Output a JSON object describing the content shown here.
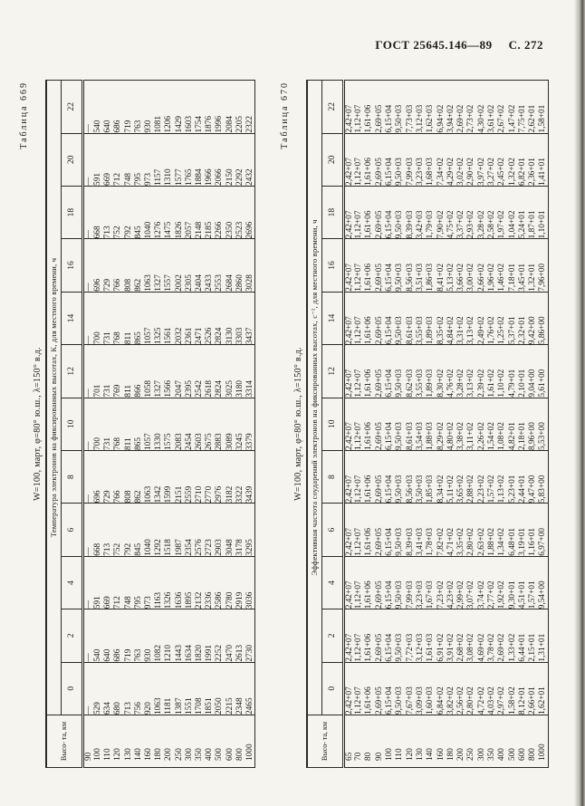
{
  "page": {
    "gost": "ГОСТ 25645.146—89",
    "page_num": "С. 272"
  },
  "tables": [
    {
      "caption": "Таблица 669",
      "title": "W=100, март, φ=80° ю.ш., λ=150° в.д.",
      "height_header": "Высо-\nта, км",
      "span_header": "Температура электронов на фиксированных высотах, К, для местного времени, ч",
      "hours": [
        "0",
        "2",
        "4",
        "6",
        "8",
        "10",
        "12",
        "14",
        "16",
        "18",
        "20",
        "22"
      ],
      "rows": [
        {
          "height": "90",
          "values": [
            "—",
            "—",
            "—",
            "—",
            "—",
            "—",
            "—",
            "—",
            "—",
            "—",
            "—",
            "—"
          ]
        },
        {
          "height": "100",
          "values": [
            "529",
            "540",
            "591",
            "668",
            "696",
            "700",
            "701",
            "700",
            "696",
            "668",
            "591",
            "540"
          ]
        },
        {
          "height": "110",
          "values": [
            "634",
            "640",
            "669",
            "713",
            "729",
            "731",
            "731",
            "731",
            "729",
            "713",
            "669",
            "640"
          ]
        },
        {
          "height": "120",
          "values": [
            "680",
            "686",
            "712",
            "752",
            "766",
            "768",
            "769",
            "768",
            "766",
            "752",
            "712",
            "686"
          ]
        },
        {
          "height": "130",
          "values": [
            "713",
            "719",
            "748",
            "792",
            "808",
            "811",
            "811",
            "811",
            "808",
            "792",
            "748",
            "719"
          ]
        },
        {
          "height": "140",
          "values": [
            "756",
            "763",
            "795",
            "845",
            "862",
            "865",
            "866",
            "865",
            "862",
            "845",
            "795",
            "763"
          ]
        },
        {
          "height": "160",
          "values": [
            "920",
            "930",
            "973",
            "1040",
            "1063",
            "1057",
            "1058",
            "1057",
            "1063",
            "1040",
            "973",
            "930"
          ]
        },
        {
          "height": "180",
          "values": [
            "1063",
            "1082",
            "1163",
            "1292",
            "1342",
            "1330",
            "1327",
            "1325",
            "1327",
            "1276",
            "1157",
            "1081"
          ]
        },
        {
          "height": "200",
          "values": [
            "1181",
            "1210",
            "1326",
            "1518",
            "1599",
            "1575",
            "1566",
            "1561",
            "1557",
            "1475",
            "1310",
            "1206"
          ]
        },
        {
          "height": "250",
          "values": [
            "1387",
            "1443",
            "1636",
            "1987",
            "2151",
            "2083",
            "2047",
            "2032",
            "2002",
            "1826",
            "1577",
            "1429"
          ]
        },
        {
          "height": "300",
          "values": [
            "1551",
            "1634",
            "1895",
            "2354",
            "2559",
            "2454",
            "2395",
            "2361",
            "2305",
            "2057",
            "1765",
            "1603"
          ]
        },
        {
          "height": "350",
          "values": [
            "1708",
            "1820",
            "2132",
            "2576",
            "2710",
            "2603",
            "2542",
            "2471",
            "2404",
            "2148",
            "1884",
            "1754"
          ]
        },
        {
          "height": "400",
          "values": [
            "1851",
            "1991",
            "2336",
            "2723",
            "2770",
            "2675",
            "2618",
            "2526",
            "2433",
            "2185",
            "1966",
            "1876"
          ]
        },
        {
          "height": "500",
          "values": [
            "2050",
            "2252",
            "2586",
            "2903",
            "2976",
            "2883",
            "2824",
            "2824",
            "2553",
            "2266",
            "2066",
            "1996"
          ]
        },
        {
          "height": "600",
          "values": [
            "2215",
            "2470",
            "2780",
            "3048",
            "3182",
            "3089",
            "3025",
            "3130",
            "2684",
            "2350",
            "2150",
            "2084"
          ]
        },
        {
          "height": "800",
          "values": [
            "2348",
            "2613",
            "2919",
            "3178",
            "3322",
            "3245",
            "3180",
            "3303",
            "2860",
            "2523",
            "2292",
            "2205"
          ]
        },
        {
          "height": "1000",
          "values": [
            "2465",
            "2730",
            "3036",
            "3295",
            "3439",
            "3379",
            "3314",
            "3437",
            "3028",
            "2696",
            "2432",
            "2322"
          ]
        }
      ]
    },
    {
      "caption": "Таблица 670",
      "title": "W=100, март, φ=80° ю.ш., λ=150° в.д.",
      "height_header": "Высо-\nта, км",
      "span_header": "Эффективная частота соударений электронов на фиксированных высотах, с⁻¹, для местного времени, ч",
      "hours": [
        "0",
        "2",
        "4",
        "6",
        "8",
        "10",
        "12",
        "14",
        "16",
        "18",
        "20",
        "22"
      ],
      "rows": [
        {
          "height": "65",
          "values": [
            "2,42+07",
            "2,42+07",
            "2,42+07",
            "2,42+07",
            "2,42+07",
            "2,42+07",
            "2,42+07",
            "2,42+07",
            "2,42+07",
            "2,42+07",
            "2,42+07",
            "2,42+07"
          ]
        },
        {
          "height": "70",
          "values": [
            "1,12+07",
            "1,12+07",
            "1,12+07",
            "1,12+07",
            "1,12+07",
            "1,12+07",
            "1,12+07",
            "1,12+07",
            "1,12+07",
            "1,12+07",
            "1,12+07",
            "1,12+07"
          ]
        },
        {
          "height": "80",
          "values": [
            "1,61+06",
            "1,61+06",
            "1,61+06",
            "1,61+06",
            "1,61+06",
            "1,61+06",
            "1,61+06",
            "1,61+06",
            "1,61+06",
            "1,61+06",
            "1,61+06",
            "1,61+06"
          ]
        },
        {
          "height": "90",
          "values": [
            "2,69+05",
            "2,69+05",
            "2,69+05",
            "2,69+05",
            "2,69+05",
            "2,69+05",
            "2,69+05",
            "2,69+05",
            "2,69+05",
            "2,69+05",
            "2,69+05",
            "2,69+05"
          ]
        },
        {
          "height": "100",
          "values": [
            "6,15+04",
            "6,15+04",
            "6,15+04",
            "6,15+04",
            "6,15+04",
            "6,15+04",
            "6,15+04",
            "6,15+04",
            "6,15+04",
            "6,15+04",
            "6,15+04",
            "6,15+04"
          ]
        },
        {
          "height": "110",
          "values": [
            "9,50+03",
            "9,50+03",
            "9,50+03",
            "9,50+03",
            "9,50+03",
            "9,50+03",
            "9,50+03",
            "9,50+03",
            "9,50+03",
            "9,50+03",
            "9,50+03",
            "9,50+03"
          ]
        },
        {
          "height": "120",
          "values": [
            "7,67+03",
            "7,72+03",
            "7,99+03",
            "8,39+03",
            "8,56+03",
            "8,61+03",
            "8,62+03",
            "8,61+03",
            "8,56+03",
            "8,39+03",
            "7,99+03",
            "7,73+03"
          ]
        },
        {
          "height": "130",
          "values": [
            "3,09+03",
            "3,12+03",
            "3,23+03",
            "3,41+03",
            "3,50+03",
            "3,54+03",
            "3,55+03",
            "3,55+03",
            "3,51+03",
            "3,42+03",
            "3,23+03",
            "3,12+03"
          ]
        },
        {
          "height": "140",
          "values": [
            "1,60+03",
            "1,61+03",
            "1,67+03",
            "1,78+03",
            "1,85+03",
            "1,88+03",
            "1,89+03",
            "1,89+03",
            "1,86+03",
            "1,79+03",
            "1,68+03",
            "1,62+03"
          ]
        },
        {
          "height": "160",
          "values": [
            "6,84+02",
            "6,91+02",
            "7,23+02",
            "7,82+02",
            "8,34+02",
            "8,29+02",
            "8,30+02",
            "8,35+02",
            "8,41+02",
            "7,90+02",
            "7,34+02",
            "6,94+02"
          ]
        },
        {
          "height": "180",
          "values": [
            "3,82+02",
            "3,91+02",
            "4,23+02",
            "4,71+02",
            "5,11+02",
            "4,80+02",
            "4,76+02",
            "4,84+02",
            "5,13+02",
            "4,75+02",
            "4,29+02",
            "3,94+02"
          ]
        },
        {
          "height": "200",
          "values": [
            "2,56+02",
            "2,68+02",
            "2,99+02",
            "3,35+02",
            "3,65+02",
            "3,38+02",
            "3,28+02",
            "3,31+02",
            "3,66+02",
            "3,37+02",
            "3,02+02",
            "2,69+02"
          ]
        },
        {
          "height": "250",
          "values": [
            "2,80+02",
            "3,08+02",
            "3,07+02",
            "2,80+02",
            "2,88+02",
            "3,11+02",
            "3,13+02",
            "3,13+02",
            "3,00+02",
            "2,93+02",
            "2,90+02",
            "2,73+02"
          ]
        },
        {
          "height": "300",
          "values": [
            "4,72+02",
            "4,69+02",
            "3,74+02",
            "2,63+02",
            "2,23+02",
            "2,26+02",
            "2,39+02",
            "2,49+02",
            "2,66+02",
            "3,28+02",
            "3,97+02",
            "4,30+02"
          ]
        },
        {
          "height": "350",
          "values": [
            "4,03+02",
            "3,78+02",
            "2,77+02",
            "1,88+02",
            "1,57+02",
            "1,54+02",
            "1,61+02",
            "1,76+02",
            "1,96+02",
            "2,58+02",
            "3,27+02",
            "3,61+02"
          ]
        },
        {
          "height": "400",
          "values": [
            "2,97+02",
            "2,69+02",
            "1,92+02",
            "1,34+02",
            "1,13+02",
            "1,08+02",
            "1,10+02",
            "1,25+02",
            "1,46+02",
            "1,97+02",
            "2,45+02",
            "2,67+02"
          ]
        },
        {
          "height": "500",
          "values": [
            "1,58+02",
            "1,33+02",
            "9,30+01",
            "6,48+01",
            "5,23+01",
            "4,82+01",
            "4,79+01",
            "5,37+01",
            "7,18+01",
            "1,04+02",
            "1,32+02",
            "1,47+02"
          ]
        },
        {
          "height": "600",
          "values": [
            "8,12+01",
            "6,44+01",
            "4,51+01",
            "3,19+01",
            "2,44+01",
            "2,18+01",
            "2,10+01",
            "2,32+01",
            "3,45+01",
            "5,24+01",
            "6,82+01",
            "7,75+01"
          ]
        },
        {
          "height": "800",
          "values": [
            "2,66+01",
            "2,15+01",
            "1,57+01",
            "1,16+01",
            "9,47+00",
            "8,96+00",
            "9,04+00",
            "9,42+00",
            "1,32+01",
            "1,87+01",
            "2,36+01",
            "2,62+01"
          ]
        },
        {
          "height": "1000",
          "values": [
            "1,62+01",
            "1,31+01",
            "9,54+00",
            "6,97+00",
            "5,83+00",
            "5,53+00",
            "5,61+00",
            "5,86+00",
            "7,96+00",
            "1,10+01",
            "1,41+01",
            "1,58+01"
          ]
        }
      ]
    }
  ]
}
